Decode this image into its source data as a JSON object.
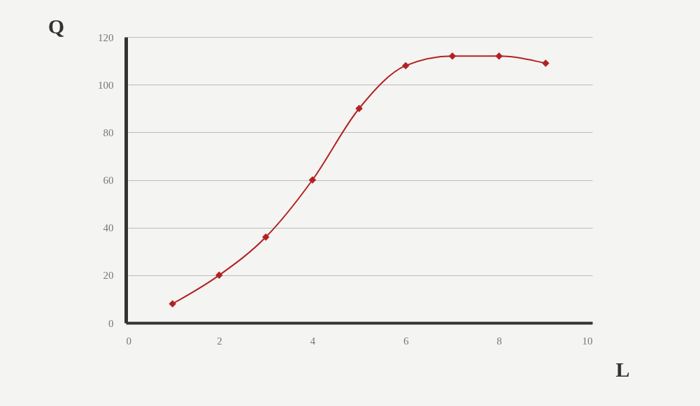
{
  "chart_data": {
    "type": "line",
    "xlabel": "L",
    "ylabel": "Q",
    "x": [
      1,
      2,
      3,
      4,
      5,
      6,
      7,
      8,
      9
    ],
    "series": [
      {
        "color": "#b22222",
        "values": [
          8,
          20,
          36,
          60,
          90,
          108,
          112,
          112,
          109
        ]
      }
    ],
    "xlim": [
      0,
      10
    ],
    "xticks": [
      0,
      2,
      4,
      6,
      8,
      10
    ],
    "ylim": [
      0,
      120
    ],
    "yticks": [
      0,
      20,
      40,
      60,
      80,
      100,
      120
    ],
    "grid": "y",
    "marker": "diamond",
    "line_style": "solid",
    "legend": false
  }
}
